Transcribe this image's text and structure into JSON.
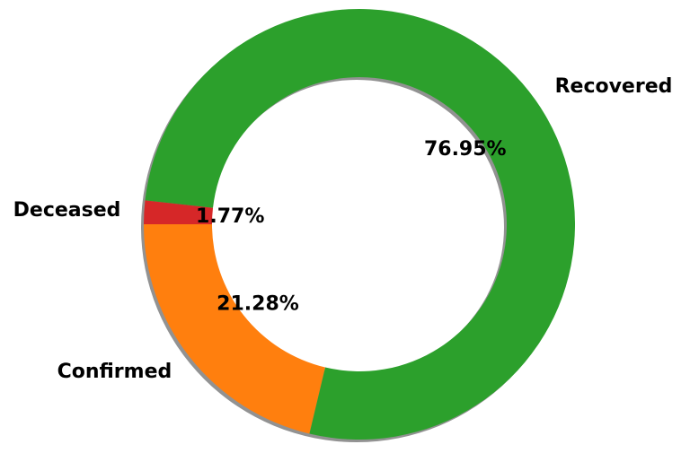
{
  "chart_data": {
    "type": "pie",
    "style": "donut",
    "shadow": true,
    "categories": [
      "Confirmed",
      "Recovered",
      "Deceased"
    ],
    "values": [
      21.28,
      76.95,
      1.77
    ],
    "percent_labels": [
      "21.28%",
      "76.95%",
      "1.77%"
    ],
    "colors": [
      "#ff7f0e",
      "#2ca02c",
      "#d62728"
    ],
    "title": "",
    "legend": "none"
  }
}
